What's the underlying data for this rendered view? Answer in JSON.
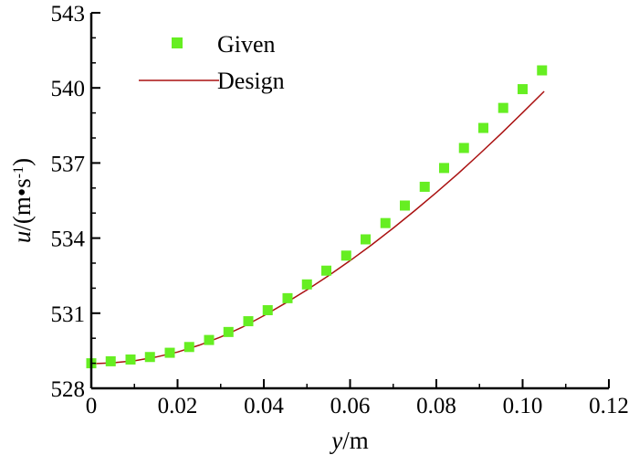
{
  "chart_data": {
    "type": "scatter",
    "title": "",
    "xlabel": {
      "italic": "y",
      "rest": "/m"
    },
    "ylabel": {
      "italic": "u",
      "rest": "/(m•s",
      "sup": "-1",
      "close": ")"
    },
    "xlim": [
      0,
      0.12
    ],
    "ylim": [
      528,
      543
    ],
    "xticks": [
      0,
      0.02,
      0.04,
      0.06,
      0.08,
      0.1,
      0.12
    ],
    "xtick_labels": [
      "0",
      "0.02",
      "0.04",
      "0.06",
      "0.08",
      "0.10",
      "0.12"
    ],
    "yticks": [
      528,
      531,
      534,
      537,
      540,
      543
    ],
    "ytick_labels": [
      "528",
      "531",
      "534",
      "537",
      "540",
      "543"
    ],
    "grid": false,
    "legend_position": "top-left",
    "series": [
      {
        "name": "Given",
        "kind": "markers",
        "marker": "square",
        "color": "#66ee22",
        "x": [
          0.0,
          0.0045,
          0.0091,
          0.0136,
          0.0182,
          0.0227,
          0.0273,
          0.0318,
          0.0364,
          0.0409,
          0.0455,
          0.05,
          0.0545,
          0.0591,
          0.0636,
          0.0682,
          0.0727,
          0.0773,
          0.0818,
          0.0864,
          0.0909,
          0.0955,
          0.1,
          0.1045
        ],
        "y": [
          529.0,
          529.08,
          529.15,
          529.25,
          529.42,
          529.65,
          529.93,
          530.25,
          530.68,
          531.12,
          531.6,
          532.15,
          532.7,
          533.3,
          533.95,
          534.6,
          535.3,
          536.05,
          536.8,
          537.6,
          538.4,
          539.2,
          539.95,
          540.7
        ]
      },
      {
        "name": "Design",
        "kind": "line",
        "color": "#aa1111",
        "x": [
          0.0,
          0.005,
          0.01,
          0.015,
          0.02,
          0.025,
          0.03,
          0.035,
          0.04,
          0.045,
          0.05,
          0.055,
          0.06,
          0.065,
          0.07,
          0.075,
          0.08,
          0.085,
          0.09,
          0.095,
          0.1,
          0.105
        ],
        "y": [
          528.98,
          529.02,
          529.1,
          529.25,
          529.45,
          529.72,
          530.05,
          530.44,
          530.9,
          531.4,
          531.93,
          532.5,
          533.1,
          533.73,
          534.4,
          535.1,
          535.82,
          536.57,
          537.36,
          538.17,
          539.01,
          539.86
        ]
      }
    ]
  }
}
